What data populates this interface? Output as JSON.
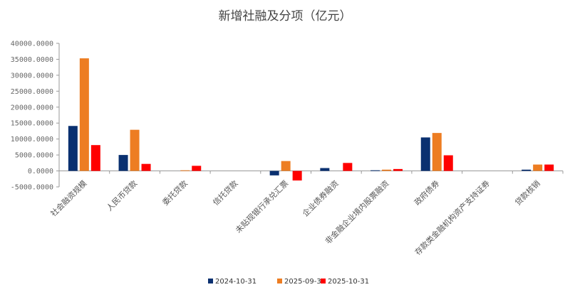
{
  "chart_data": {
    "type": "bar",
    "title": "新增社融及分项（亿元）",
    "xlabel": "",
    "ylabel": "",
    "ylim": [
      -5000,
      40000
    ],
    "yticks": [
      -5000,
      0,
      5000,
      10000,
      15000,
      20000,
      25000,
      30000,
      35000,
      40000
    ],
    "categories": [
      "社会融资规模",
      "人民币贷款",
      "委托贷款",
      "信托贷款",
      "未贴现银行承兑汇票",
      "企业债券融资",
      "非金融企业境内股票融资",
      "政府债券",
      "存款类金融机构资产支持证券",
      "贷款核销"
    ],
    "series": [
      {
        "name": "2024-10-31",
        "color": "#0a3070",
        "values": [
          14100,
          5000,
          0,
          0,
          -1400,
          900,
          200,
          10500,
          0,
          400
        ]
      },
      {
        "name": "2025-09-30",
        "color": "#ed7d22",
        "values": [
          35300,
          12900,
          200,
          0,
          3100,
          0,
          400,
          11900,
          0,
          2000
        ]
      },
      {
        "name": "2025-10-31",
        "color": "#ff0000",
        "values": [
          8100,
          2200,
          1600,
          0,
          -3000,
          2500,
          600,
          4900,
          0,
          2000
        ]
      }
    ],
    "grid": false,
    "legend_position": "bottom"
  }
}
